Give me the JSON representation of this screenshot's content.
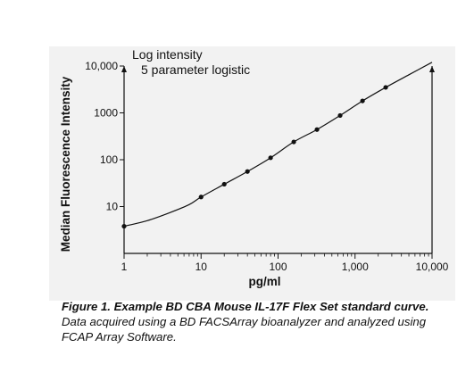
{
  "chart_data": {
    "type": "line",
    "title": "",
    "annotation_lines": [
      "Log intensity",
      "5 parameter logistic"
    ],
    "xlabel": "pg/ml",
    "ylabel": "Median Fluorescence Intensity",
    "x_scale": "log",
    "y_scale": "log",
    "xlim": [
      1,
      10000
    ],
    "ylim": [
      1,
      10000
    ],
    "x_ticks": [
      1,
      10,
      100,
      1000,
      10000
    ],
    "x_tick_labels": [
      "1",
      "10",
      "100",
      "1,000",
      "10,000"
    ],
    "y_ticks": [
      10,
      100,
      1000,
      10000
    ],
    "y_tick_labels": [
      "10",
      "100",
      "1000",
      "10,000"
    ],
    "grid": false,
    "series": [
      {
        "points": [
          {
            "x": 1,
            "y": 3.8
          },
          {
            "x": 10,
            "y": 16
          },
          {
            "x": 20,
            "y": 30
          },
          {
            "x": 40,
            "y": 56
          },
          {
            "x": 80,
            "y": 110
          },
          {
            "x": 160,
            "y": 240
          },
          {
            "x": 320,
            "y": 440
          },
          {
            "x": 640,
            "y": 880
          },
          {
            "x": 1250,
            "y": 1800
          },
          {
            "x": 2500,
            "y": 3500
          }
        ],
        "curve": [
          {
            "x": 1,
            "y": 3.8
          },
          {
            "x": 2,
            "y": 5
          },
          {
            "x": 4,
            "y": 7.5
          },
          {
            "x": 7,
            "y": 11
          },
          {
            "x": 10,
            "y": 16
          },
          {
            "x": 20,
            "y": 30
          },
          {
            "x": 40,
            "y": 56
          },
          {
            "x": 80,
            "y": 110
          },
          {
            "x": 160,
            "y": 240
          },
          {
            "x": 320,
            "y": 440
          },
          {
            "x": 640,
            "y": 880
          },
          {
            "x": 1250,
            "y": 1800
          },
          {
            "x": 2500,
            "y": 3500
          },
          {
            "x": 5000,
            "y": 6500
          },
          {
            "x": 10000,
            "y": 12000
          }
        ]
      }
    ]
  },
  "caption": {
    "bold": "Figure 1. Example BD CBA Mouse IL-17F Flex Set standard curve.",
    "text": " Data acquired using a BD FACSArray bioanalyzer and analyzed using FCAP Array Software."
  }
}
